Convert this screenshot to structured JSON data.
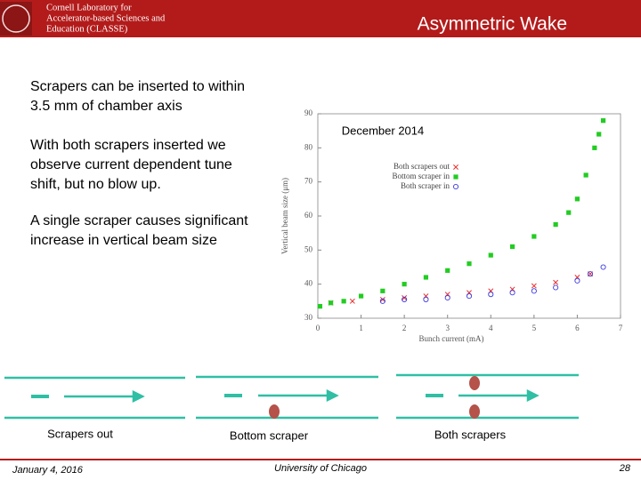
{
  "header": {
    "logo_lines": [
      "Cornell Laboratory for",
      "Accelerator-based Sciences and",
      "Education (CLASSE)"
    ],
    "title": "Asymmetric Wake"
  },
  "body": [
    "Scrapers can be inserted to within 3.5 mm of chamber axis",
    "With both scrapers inserted we observe current dependent tune shift, but no blow up.",
    "A single scraper causes significant increase in vertical beam size"
  ],
  "chart_data": {
    "type": "scatter",
    "annotation": "December 2014",
    "xlabel": "Bunch current (mA)",
    "ylabel": "Vertical beam size (μm)",
    "xlim": [
      0,
      7
    ],
    "xticks": [
      0,
      1,
      2,
      3,
      4,
      5,
      6,
      7
    ],
    "ylim": [
      30,
      90
    ],
    "yticks": [
      30,
      40,
      50,
      60,
      70,
      80,
      90
    ],
    "series": [
      {
        "name": "Both scrapers out",
        "color": "#e83030",
        "marker": "x",
        "x": [
          0.3,
          0.8,
          1.5,
          2,
          2.5,
          3,
          3.5,
          4,
          4.5,
          5,
          5.5,
          6,
          6.3
        ],
        "values": [
          34.5,
          35,
          35.5,
          36,
          36.5,
          37,
          37.5,
          38,
          38.5,
          39.5,
          40.5,
          42,
          43
        ]
      },
      {
        "name": "Bottom scraper in",
        "color": "#22cc22",
        "marker": "square",
        "x": [
          0.05,
          0.3,
          0.6,
          1,
          1.5,
          2,
          2.5,
          3,
          3.5,
          4,
          4.5,
          5,
          5.5,
          5.8,
          6,
          6.2,
          6.4,
          6.5,
          6.6
        ],
        "values": [
          33.5,
          34.5,
          35,
          36.5,
          38,
          40,
          42,
          44,
          46,
          48.5,
          51,
          54,
          57.5,
          61,
          65,
          72,
          80,
          84,
          88
        ]
      },
      {
        "name": "Both scraper in",
        "color": "#3a3ae0",
        "marker": "circle",
        "x": [
          1.5,
          2,
          2.5,
          3,
          3.5,
          4,
          4.5,
          5,
          5.5,
          6,
          6.3,
          6.6
        ],
        "values": [
          35,
          35.5,
          35.5,
          36,
          36.5,
          37,
          37.5,
          38,
          39,
          41,
          43,
          45
        ]
      }
    ]
  },
  "schematics": [
    "Scrapers out",
    "Bottom scraper",
    "Both scrapers"
  ],
  "footer": {
    "date": "January 4, 2016",
    "venue": "University of Chicago",
    "page": "28"
  }
}
